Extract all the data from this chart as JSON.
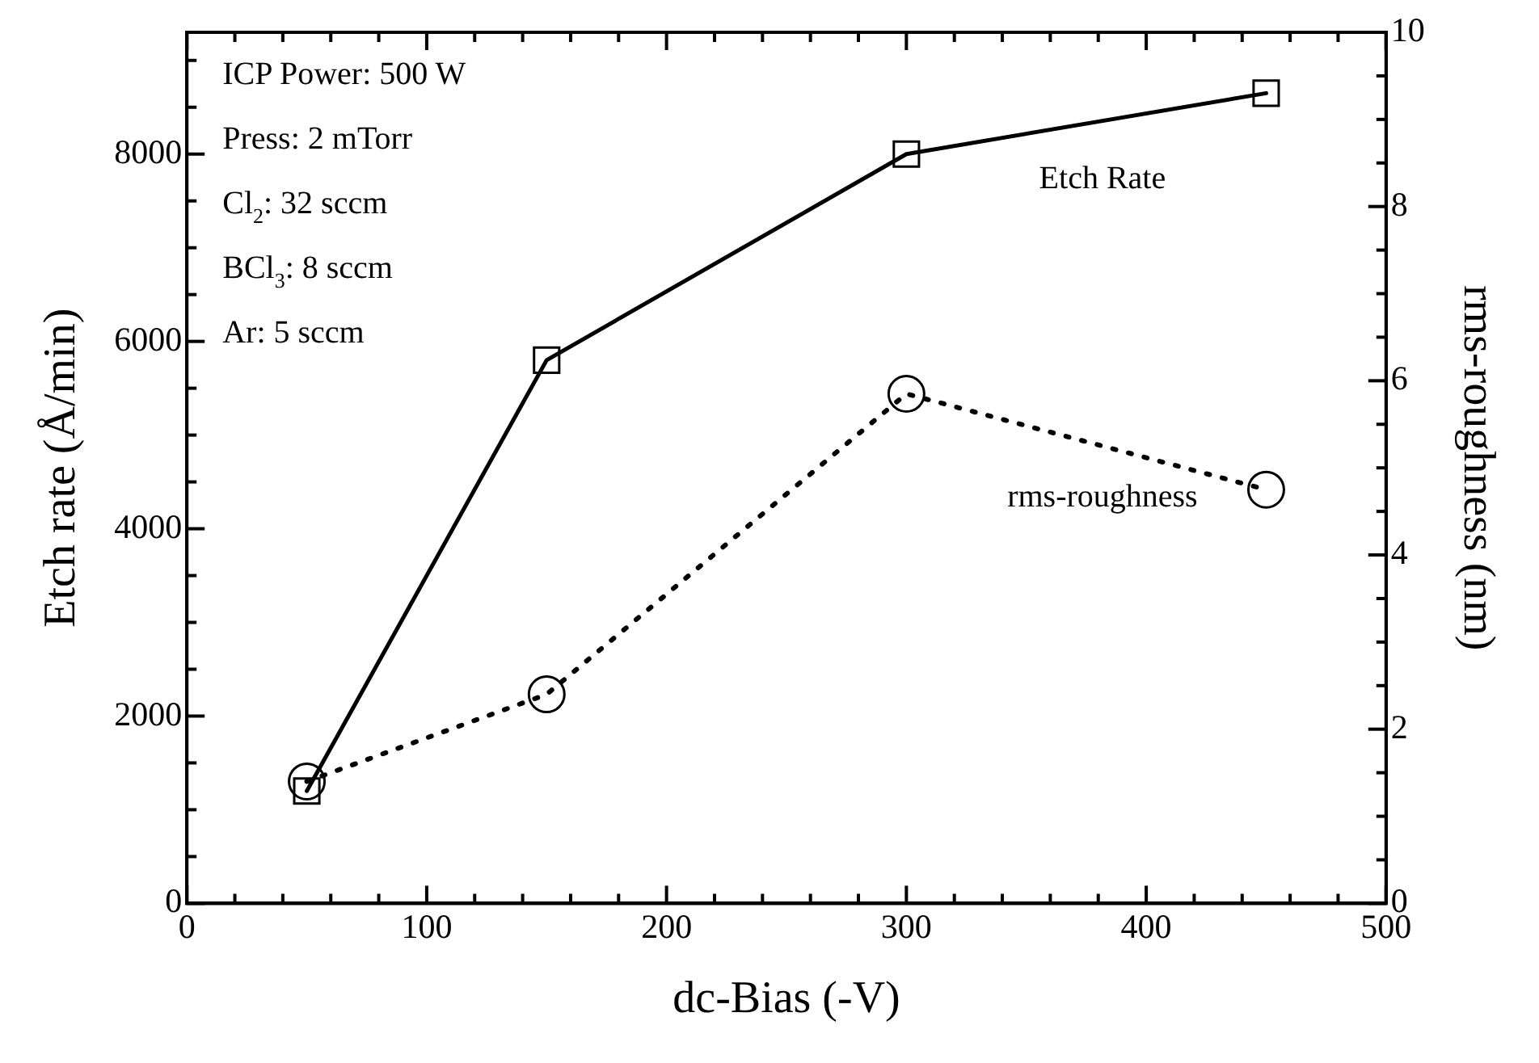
{
  "chart_data": {
    "type": "line",
    "xlabel": "dc-Bias (-V)",
    "ylabel": "Etch rate (Å/min)",
    "y2label": "rms-roughness (nm)",
    "x": [
      50,
      150,
      300,
      450
    ],
    "series": [
      {
        "name": "Etch Rate",
        "color": "#000000",
        "values": [
          1200,
          5800,
          8000,
          8650
        ],
        "marker": "square",
        "line_style": "solid"
      },
      {
        "name": "rms-roughness",
        "color": "#000000",
        "values": [
          1.4,
          2.4,
          5.85,
          4.75
        ],
        "marker": "circle",
        "line_style": "dotted",
        "axis": "y2"
      }
    ],
    "xlim": [
      0,
      500
    ],
    "xticks": [
      0,
      {
        "value": 20,
        "label": null
      },
      {
        "value": 40,
        "label": null
      },
      {
        "value": 60,
        "label": null
      },
      {
        "value": 80,
        "label": null
      },
      100,
      {
        "value": 120,
        "label": null
      },
      {
        "value": 140,
        "label": null
      },
      {
        "value": 160,
        "label": null
      },
      {
        "value": 180,
        "label": null
      },
      200,
      {
        "value": 220,
        "label": null
      },
      {
        "value": 240,
        "label": null
      },
      {
        "value": 260,
        "label": null
      },
      {
        "value": 280,
        "label": null
      },
      300,
      {
        "value": 320,
        "label": null
      },
      {
        "value": 340,
        "label": null
      },
      {
        "value": 360,
        "label": null
      },
      {
        "value": 380,
        "label": null
      },
      400,
      {
        "value": 420,
        "label": null
      },
      {
        "value": 440,
        "label": null
      },
      {
        "value": 460,
        "label": null
      },
      {
        "value": 480,
        "label": null
      },
      500
    ],
    "ylim": [
      0,
      9300
    ],
    "yticks": [
      0,
      {
        "value": 500,
        "label": null
      },
      {
        "value": 1000,
        "label": null
      },
      {
        "value": 1500,
        "label": null
      },
      2000,
      {
        "value": 2500,
        "label": null
      },
      {
        "value": 3000,
        "label": null
      },
      {
        "value": 3500,
        "label": null
      },
      4000,
      {
        "value": 4500,
        "label": null
      },
      {
        "value": 5000,
        "label": null
      },
      {
        "value": 5500,
        "label": null
      },
      6000,
      {
        "value": 6500,
        "label": null
      },
      {
        "value": 7000,
        "label": null
      },
      {
        "value": 7500,
        "label": null
      },
      8000,
      {
        "value": 8500,
        "label": null
      },
      {
        "value": 9000,
        "label": null
      }
    ],
    "y2lim": [
      0,
      10
    ],
    "y2ticks": [
      0,
      {
        "value": 0.5,
        "label": null
      },
      {
        "value": 1,
        "label": null
      },
      {
        "value": 1.5,
        "label": null
      },
      2,
      {
        "value": 2.5,
        "label": null
      },
      {
        "value": 3,
        "label": null
      },
      {
        "value": 3.5,
        "label": null
      },
      4,
      {
        "value": 4.5,
        "label": null
      },
      {
        "value": 5,
        "label": null
      },
      {
        "value": 5.5,
        "label": null
      },
      6,
      {
        "value": 6.5,
        "label": null
      },
      {
        "value": 7,
        "label": null
      },
      {
        "value": 7.5,
        "label": null
      },
      8,
      {
        "value": 8.5,
        "label": null
      },
      {
        "value": 9,
        "label": null
      },
      {
        "value": 9.5,
        "label": null
      },
      10
    ],
    "annotations": [
      "ICP Power: 500 W",
      "Press: 2 mTorr",
      "Cl$_{2}$: 32 sccm",
      "BCl$_{3}$: 8 sccm",
      "Ar: 5 sccm"
    ],
    "grid": false,
    "legend": false
  }
}
